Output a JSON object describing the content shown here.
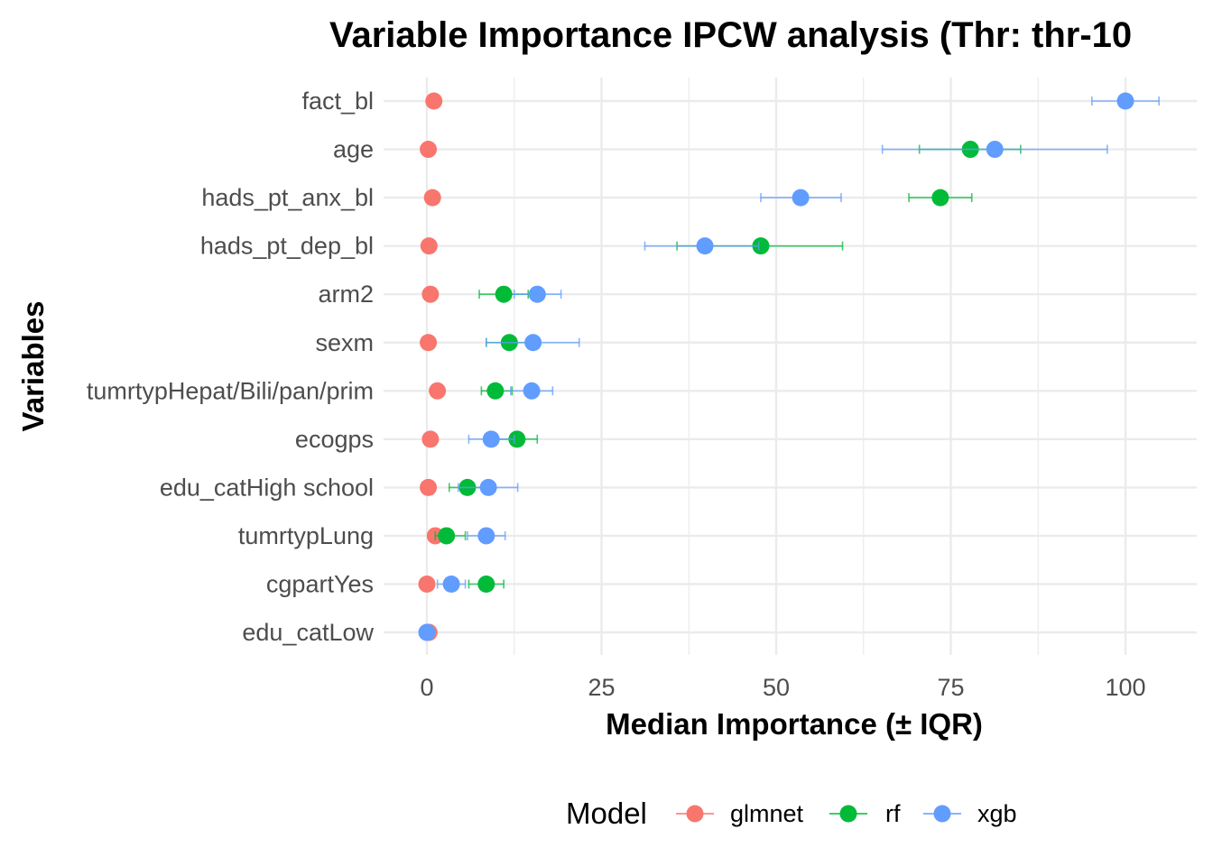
{
  "chart_data": {
    "type": "scatter",
    "title": "Variable Importance IPCW analysis (Thr: thr-10",
    "xlabel": "Median Importance (± IQR)",
    "ylabel": "Variables",
    "xlim": [
      -2.5,
      110
    ],
    "xticks": [
      0,
      25,
      50,
      75,
      100
    ],
    "xtick_labels": [
      "0",
      "25",
      "50",
      "75",
      "100"
    ],
    "categories": [
      "fact_bl",
      "age",
      "hads_pt_anx_bl",
      "hads_pt_dep_bl",
      "arm2",
      "sexm",
      "tumrtypHepat/Bili/pan/prim",
      "ecogps",
      "edu_catHigh school",
      "tumrtypLung",
      "cgpartYes",
      "edu_catLow"
    ],
    "grid": true,
    "legend": {
      "title": "Model",
      "position": "bottom"
    },
    "series": [
      {
        "name": "glmnet",
        "color": "#F8766D",
        "points": [
          {
            "y": "fact_bl",
            "x": 1.0,
            "lo": 1.0,
            "hi": 1.0
          },
          {
            "y": "age",
            "x": 0.2,
            "lo": 0.2,
            "hi": 0.2
          },
          {
            "y": "hads_pt_anx_bl",
            "x": 0.8,
            "lo": 0.8,
            "hi": 0.8
          },
          {
            "y": "hads_pt_dep_bl",
            "x": 0.3,
            "lo": 0.3,
            "hi": 0.3
          },
          {
            "y": "arm2",
            "x": 0.5,
            "lo": 0.5,
            "hi": 0.5
          },
          {
            "y": "sexm",
            "x": 0.2,
            "lo": 0.2,
            "hi": 0.2
          },
          {
            "y": "tumrtypHepat/Bili/pan/prim",
            "x": 1.5,
            "lo": 1.5,
            "hi": 1.5
          },
          {
            "y": "ecogps",
            "x": 0.5,
            "lo": 0.5,
            "hi": 0.5
          },
          {
            "y": "edu_catHigh school",
            "x": 0.2,
            "lo": 0.2,
            "hi": 0.2
          },
          {
            "y": "tumrtypLung",
            "x": 1.2,
            "lo": 1.2,
            "hi": 1.2
          },
          {
            "y": "cgpartYes",
            "x": 0.0,
            "lo": 0.0,
            "hi": 0.0
          },
          {
            "y": "edu_catLow",
            "x": 0.3,
            "lo": 0.3,
            "hi": 0.3
          }
        ]
      },
      {
        "name": "rf",
        "color": "#00BA38",
        "points": [
          {
            "y": "age",
            "x": 77.8,
            "lo": 70.5,
            "hi": 85.0
          },
          {
            "y": "hads_pt_anx_bl",
            "x": 73.5,
            "lo": 69.0,
            "hi": 78.0
          },
          {
            "y": "hads_pt_dep_bl",
            "x": 47.8,
            "lo": 35.8,
            "hi": 59.5
          },
          {
            "y": "arm2",
            "x": 11.0,
            "lo": 7.5,
            "hi": 14.5
          },
          {
            "y": "sexm",
            "x": 11.8,
            "lo": 8.5,
            "hi": 15.0
          },
          {
            "y": "tumrtypHepat/Bili/pan/prim",
            "x": 9.8,
            "lo": 7.8,
            "hi": 12.2
          },
          {
            "y": "ecogps",
            "x": 12.9,
            "lo": 10.0,
            "hi": 15.8
          },
          {
            "y": "edu_catHigh school",
            "x": 5.8,
            "lo": 3.2,
            "hi": 8.5
          },
          {
            "y": "tumrtypLung",
            "x": 2.8,
            "lo": 1.2,
            "hi": 5.5
          },
          {
            "y": "cgpartYes",
            "x": 8.5,
            "lo": 6.0,
            "hi": 11.0
          }
        ]
      },
      {
        "name": "xgb",
        "color": "#619CFF",
        "points": [
          {
            "y": "fact_bl",
            "x": 100.0,
            "lo": 95.2,
            "hi": 104.8
          },
          {
            "y": "age",
            "x": 81.3,
            "lo": 65.2,
            "hi": 97.4
          },
          {
            "y": "hads_pt_anx_bl",
            "x": 53.5,
            "lo": 47.8,
            "hi": 59.3
          },
          {
            "y": "hads_pt_dep_bl",
            "x": 39.8,
            "lo": 31.2,
            "hi": 47.5
          },
          {
            "y": "arm2",
            "x": 15.8,
            "lo": 12.5,
            "hi": 19.2
          },
          {
            "y": "sexm",
            "x": 15.2,
            "lo": 8.5,
            "hi": 21.8
          },
          {
            "y": "tumrtypHepat/Bili/pan/prim",
            "x": 15.0,
            "lo": 12.0,
            "hi": 18.0
          },
          {
            "y": "ecogps",
            "x": 9.2,
            "lo": 6.0,
            "hi": 12.5
          },
          {
            "y": "edu_catHigh school",
            "x": 8.8,
            "lo": 4.5,
            "hi": 13.0
          },
          {
            "y": "tumrtypLung",
            "x": 8.5,
            "lo": 5.8,
            "hi": 11.2
          },
          {
            "y": "cgpartYes",
            "x": 3.5,
            "lo": 1.5,
            "hi": 5.5
          },
          {
            "y": "edu_catLow",
            "x": 0.0,
            "lo": 0.0,
            "hi": 0.0
          }
        ]
      }
    ]
  }
}
